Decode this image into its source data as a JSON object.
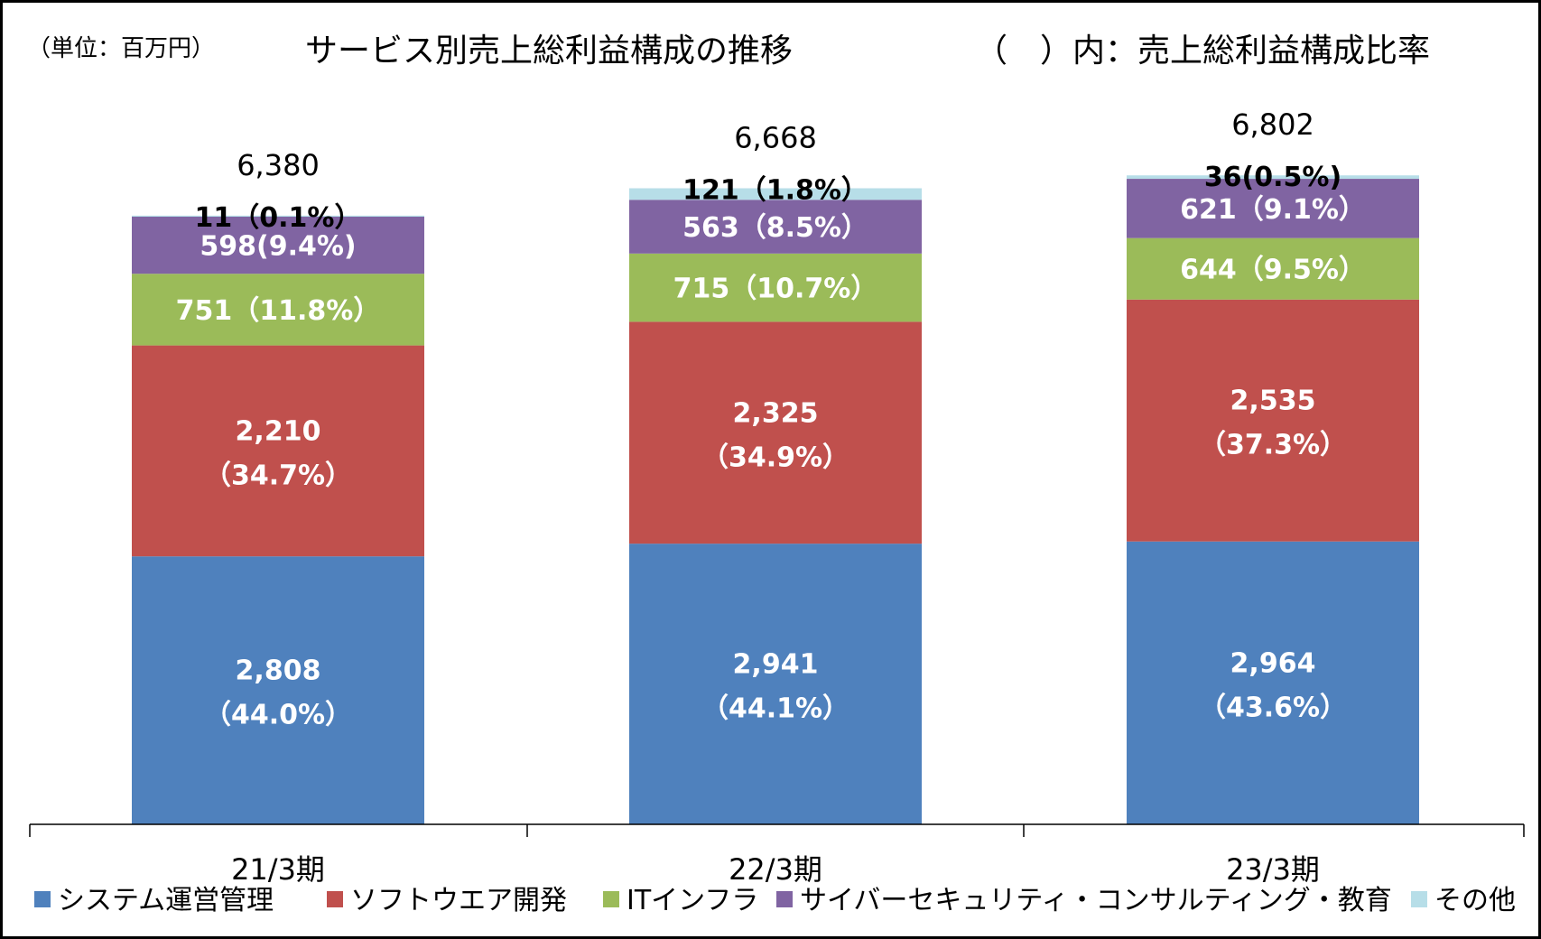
{
  "unit_label": "（単位：百万円）",
  "title": "サービス別売上総利益構成の推移",
  "subtitle": "（　）内：売上総利益構成比率",
  "colors": {
    "system": "#4f81bd",
    "software": "#c0504d",
    "infra": "#9bbb59",
    "security": "#8064a2",
    "other": "#b7dee8"
  },
  "chart_data": {
    "type": "bar",
    "stacked": true,
    "categories": [
      "21/3期",
      "22/3期",
      "23/3期"
    ],
    "ylim": [
      0,
      7200
    ],
    "series": [
      {
        "key": "system",
        "name": "システム運営管理",
        "values": [
          2808,
          2941,
          2964
        ],
        "labels": [
          "2,808",
          "2,941",
          "2,964"
        ],
        "pcts": [
          "（44.0%）",
          "（44.1%）",
          "（43.6%）"
        ]
      },
      {
        "key": "software",
        "name": "ソフトウエア開発",
        "values": [
          2210,
          2325,
          2535
        ],
        "labels": [
          "2,210",
          "2,325",
          "2,535"
        ],
        "pcts": [
          "（34.7%）",
          "（34.9%）",
          "（37.3%）"
        ]
      },
      {
        "key": "infra",
        "name": "ITインフラ",
        "values": [
          751,
          715,
          644
        ],
        "labels": [
          "751（11.8%）",
          "715（10.7%）",
          "644（9.5%）"
        ]
      },
      {
        "key": "security",
        "name": "サイバーセキュリティ・コンサルティング・教育",
        "values": [
          598,
          563,
          621
        ],
        "labels": [
          "598(9.4%)",
          "563（8.5%）",
          "621（9.1%）"
        ]
      },
      {
        "key": "other",
        "name": "その他",
        "values": [
          11,
          121,
          36
        ],
        "labels": [
          "11（0.1%）",
          "121（1.8%）",
          "36(0.5%)"
        ]
      }
    ],
    "totals": [
      6380,
      6668,
      6802
    ],
    "total_labels": [
      "6,380",
      "6,668",
      "6,802"
    ],
    "legend_position": "bottom"
  }
}
